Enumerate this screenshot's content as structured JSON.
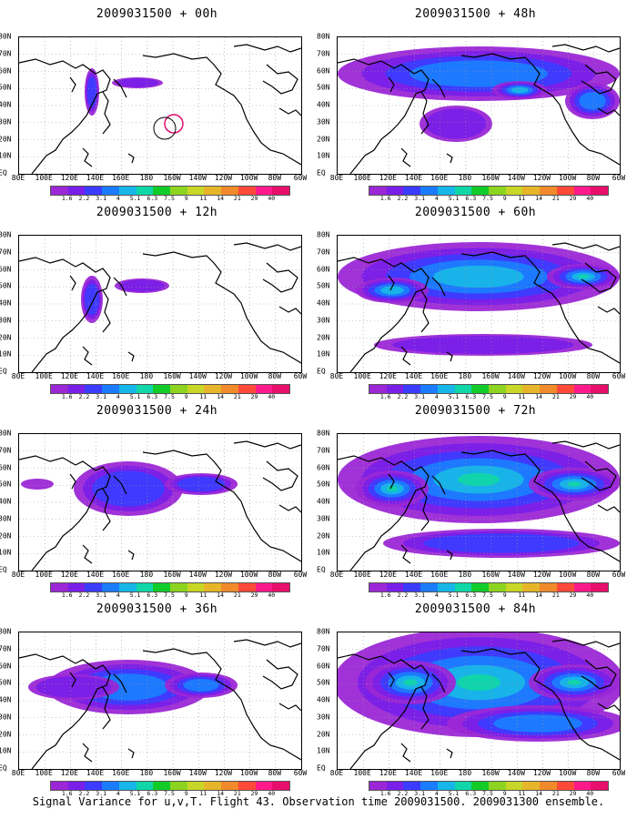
{
  "footer": "Signal Variance for u,v,T. Flight 43. Observation time 2009031500. 2009031300 ensemble.",
  "lat_labels": [
    "80N",
    "70N",
    "60N",
    "50N",
    "40N",
    "30N",
    "20N",
    "10N",
    "EQ"
  ],
  "lon_labels": [
    "80E",
    "100E",
    "120E",
    "140E",
    "160E",
    "180",
    "160W",
    "140W",
    "120W",
    "100W",
    "80W",
    "60W"
  ],
  "colorbar": {
    "levels": [
      "1.6",
      "2.2",
      "3.1",
      "4",
      "5.1",
      "6.3",
      "7.5",
      "9",
      "11",
      "14",
      "21",
      "29",
      "40"
    ],
    "colors": [
      "#9b27d6",
      "#7a1fe8",
      "#3c3cff",
      "#1b7cff",
      "#17b6e8",
      "#10d6a8",
      "#12cc2a",
      "#8cd420",
      "#c8d628",
      "#e6b52a",
      "#f08a2a",
      "#ff4a3a",
      "#ff1a8c",
      "#e80f6c"
    ]
  },
  "panels": [
    {
      "id": "p00",
      "title": "2009031500 + 00h",
      "level": 0
    },
    {
      "id": "p12",
      "title": "2009031500 + 12h",
      "level": 1
    },
    {
      "id": "p24",
      "title": "2009031500 + 24h",
      "level": 2
    },
    {
      "id": "p36",
      "title": "2009031500 + 36h",
      "level": 3
    },
    {
      "id": "p48",
      "title": "2009031500 + 48h",
      "level": 4
    },
    {
      "id": "p60",
      "title": "2009031500 + 60h",
      "level": 5
    },
    {
      "id": "p72",
      "title": "2009031500 + 72h",
      "level": 6
    },
    {
      "id": "p84",
      "title": "2009031500 + 84h",
      "level": 7
    }
  ]
}
